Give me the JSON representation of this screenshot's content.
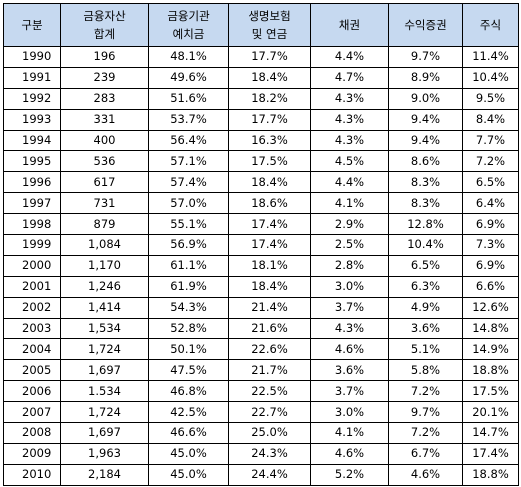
{
  "table": {
    "header": [
      [
        "구분"
      ],
      [
        "금융자산",
        "합계"
      ],
      [
        "금융기관",
        "예치금"
      ],
      [
        "생명보험",
        "및 연금"
      ],
      [
        "채권"
      ],
      [
        "수익증권"
      ],
      [
        "주식"
      ]
    ],
    "rows": [
      [
        "1990",
        "196",
        "48.1%",
        "17.7%",
        "4.4%",
        "9.7%",
        "11.4%"
      ],
      [
        "1991",
        "239",
        "49.6%",
        "18.4%",
        "4.7%",
        "8.9%",
        "10.4%"
      ],
      [
        "1992",
        "283",
        "51.6%",
        "18.2%",
        "4.3%",
        "9.0%",
        "9.5%"
      ],
      [
        "1993",
        "331",
        "53.7%",
        "17.7%",
        "4.3%",
        "9.4%",
        "8.4%"
      ],
      [
        "1994",
        "400",
        "56.4%",
        "16.3%",
        "4.3%",
        "9.4%",
        "7.7%"
      ],
      [
        "1995",
        "536",
        "57.1%",
        "17.5%",
        "4.5%",
        "8.6%",
        "7.2%"
      ],
      [
        "1996",
        "617",
        "57.4%",
        "18.4%",
        "4.4%",
        "8.3%",
        "6.5%"
      ],
      [
        "1997",
        "731",
        "57.0%",
        "18.6%",
        "4.1%",
        "8.3%",
        "6.4%"
      ],
      [
        "1998",
        "879",
        "55.1%",
        "17.4%",
        "2.9%",
        "12.8%",
        "6.9%"
      ],
      [
        "1999",
        "1,084",
        "56.9%",
        "17.4%",
        "2.5%",
        "10.4%",
        "7.3%"
      ],
      [
        "2000",
        "1,170",
        "61.1%",
        "18.1%",
        "2.8%",
        "6.5%",
        "6.9%"
      ],
      [
        "2001",
        "1,246",
        "61.9%",
        "18.4%",
        "3.0%",
        "6.3%",
        "6.6%"
      ],
      [
        "2002",
        "1,414",
        "54.3%",
        "21.4%",
        "3.7%",
        "4.9%",
        "12.6%"
      ],
      [
        "2003",
        "1,534",
        "52.8%",
        "21.6%",
        "4.3%",
        "3.6%",
        "14.8%"
      ],
      [
        "2004",
        "1,724",
        "50.1%",
        "22.6%",
        "4.6%",
        "5.1%",
        "14.9%"
      ],
      [
        "2005",
        "1,697",
        "47.5%",
        "21.7%",
        "3.6%",
        "5.8%",
        "18.8%"
      ],
      [
        "2006",
        "1.534",
        "46.8%",
        "22.5%",
        "3.7%",
        "7.2%",
        "17.5%"
      ],
      [
        "2007",
        "1,724",
        "42.5%",
        "22.7%",
        "3.0%",
        "9.7%",
        "20.1%"
      ],
      [
        "2008",
        "1,697",
        "46.6%",
        "25.0%",
        "4.1%",
        "7.2%",
        "14.7%"
      ],
      [
        "2009",
        "1,963",
        "45.0%",
        "24.3%",
        "4.6%",
        "6.7%",
        "17.4%"
      ],
      [
        "2010",
        "2,184",
        "45.0%",
        "24.4%",
        "5.2%",
        "4.6%",
        "18.8%"
      ]
    ]
  }
}
